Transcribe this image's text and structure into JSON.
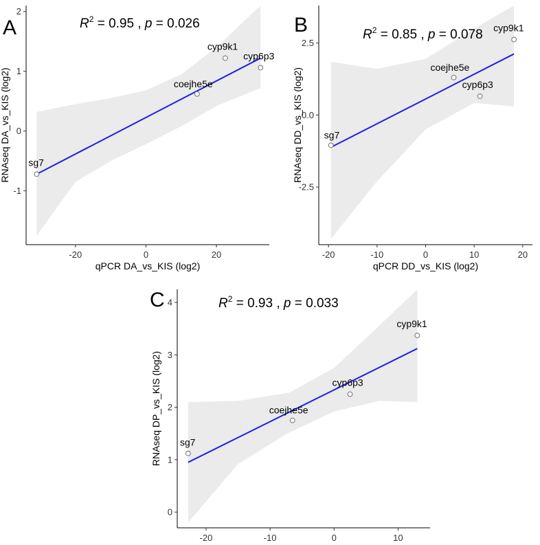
{
  "chart_data": [
    {
      "type": "scatter",
      "panel": "A",
      "stat": {
        "r2": "0.95",
        "p": "0.026"
      },
      "xlabel": "qPCR DA_vs_KIS (log2)",
      "ylabel": "RNAseq DA_vs_KIS (log2)",
      "xlim": [
        -34,
        35
      ],
      "ylim": [
        -1.9,
        2.1
      ],
      "xticks": [
        -20,
        0,
        20
      ],
      "yticks": [
        -1,
        0,
        1,
        2
      ],
      "points": [
        {
          "label": "sg7",
          "x": -31,
          "y": -0.72
        },
        {
          "label": "coejhe5e",
          "x": 14.5,
          "y": 0.62
        },
        {
          "label": "cyp9k1",
          "x": 22.5,
          "y": 1.22
        },
        {
          "label": "cyp6p3",
          "x": 32.5,
          "y": 1.06
        }
      ],
      "fit": {
        "x": [
          -31,
          32.5
        ],
        "y": [
          -0.72,
          1.22
        ]
      },
      "band": {
        "x": [
          -31,
          -20,
          -10,
          0,
          10,
          20,
          32.5
        ],
        "lower": [
          -1.75,
          -0.85,
          -0.5,
          -0.22,
          0.08,
          0.42,
          0.72
        ],
        "upper": [
          0.32,
          0.45,
          0.55,
          0.68,
          0.95,
          1.4,
          2.1
        ]
      }
    },
    {
      "type": "scatter",
      "panel": "B",
      "stat": {
        "r2": "0.85",
        "p": "0.078"
      },
      "xlabel": "qPCR DD_vs_KIS (log2)",
      "ylabel": "RNAseq DD_vs_KIS (log2)",
      "xlim": [
        -22,
        22
      ],
      "ylim": [
        -4.5,
        3.8
      ],
      "xticks": [
        -20,
        -10,
        0,
        10,
        20
      ],
      "yticks": [
        -2.5,
        0.0,
        2.5
      ],
      "yticklabels": [
        "-2.5",
        "0.0",
        "2.5"
      ],
      "points": [
        {
          "label": "sg7",
          "x": -19.5,
          "y": -1.05
        },
        {
          "label": "coejhe5e",
          "x": 5.8,
          "y": 1.3
        },
        {
          "label": "cyp6p3",
          "x": 11.2,
          "y": 0.65
        },
        {
          "label": "cyp9k1",
          "x": 18.2,
          "y": 2.62
        }
      ],
      "fit": {
        "x": [
          -19.5,
          18.2
        ],
        "y": [
          -1.12,
          2.12
        ]
      },
      "band": {
        "x": [
          -19.5,
          -10,
          0,
          10,
          18.2
        ],
        "lower": [
          -4.3,
          -2.3,
          -0.5,
          0.42,
          0.3
        ],
        "upper": [
          1.85,
          1.6,
          1.95,
          3.0,
          3.8
        ]
      }
    },
    {
      "type": "scatter",
      "panel": "C",
      "stat": {
        "r2": "0.93",
        "p": "0.033"
      },
      "xlabel": "qPCR DP_vs_KIS (log2)",
      "ylabel": "RNAseq DP_vs_KIS (log2)",
      "xlim": [
        -24.5,
        15
      ],
      "ylim": [
        -0.3,
        4.25
      ],
      "xticks": [
        -20,
        -10,
        0,
        10
      ],
      "yticks": [
        0,
        1,
        2,
        3,
        4
      ],
      "points": [
        {
          "label": "sg7",
          "x": -22.8,
          "y": 1.12
        },
        {
          "label": "coejhe5e",
          "x": -6.5,
          "y": 1.75
        },
        {
          "label": "cyp6p3",
          "x": 2.5,
          "y": 2.25
        },
        {
          "label": "cyp9k1",
          "x": 13,
          "y": 3.37
        }
      ],
      "fit": {
        "x": [
          -22.8,
          13
        ],
        "y": [
          0.95,
          3.12
        ]
      },
      "band": {
        "x": [
          -22.8,
          -15,
          -7,
          0,
          7,
          13
        ],
        "lower": [
          -0.2,
          0.92,
          1.52,
          1.92,
          2.12,
          2.1
        ],
        "upper": [
          2.1,
          2.12,
          2.28,
          2.75,
          3.55,
          4.25
        ]
      }
    }
  ]
}
